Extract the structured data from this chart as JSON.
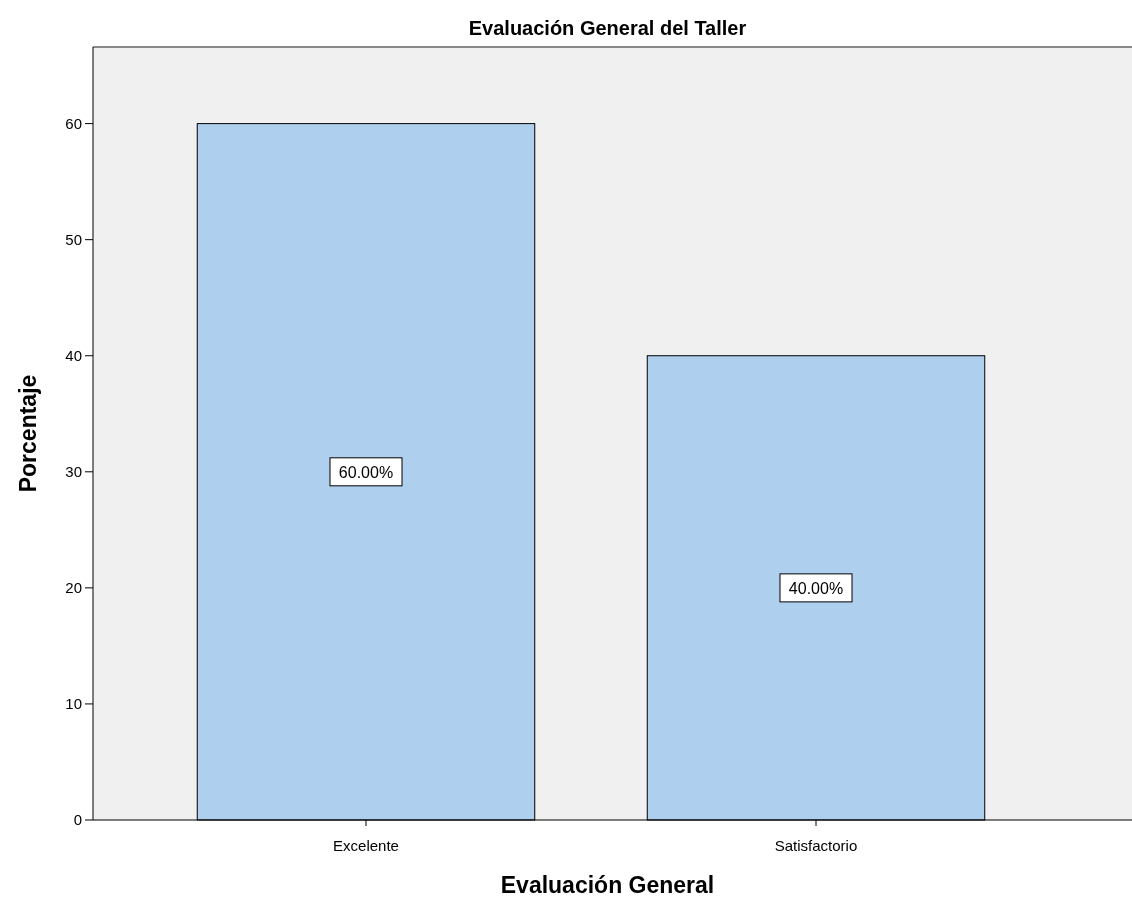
{
  "chart_data": {
    "type": "bar",
    "title": "Evaluación General del Taller",
    "xlabel": "Evaluación General",
    "ylabel": "Porcentaje",
    "categories": [
      "Excelente",
      "Satisfactorio"
    ],
    "values": [
      60,
      40
    ],
    "color": "#aecfee",
    "value_labels": [
      "60.00%",
      "40.00%"
    ],
    "ylim": [
      0,
      66.6
    ],
    "yticks": [
      0,
      10,
      20,
      30,
      40,
      50,
      60
    ],
    "grid": false
  }
}
